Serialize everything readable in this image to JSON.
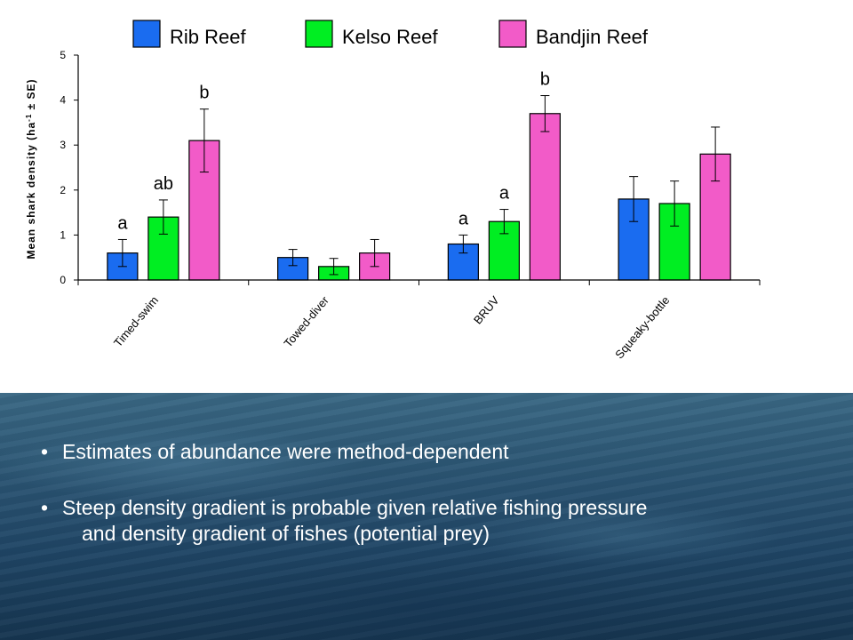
{
  "chart_data": {
    "type": "bar",
    "categories": [
      "Timed-swim",
      "Towed-diver",
      "BRUV",
      "Squeaky-bottle"
    ],
    "series": [
      {
        "name": "Rib Reef",
        "color": "#1a6cf0",
        "values": [
          0.6,
          0.5,
          0.8,
          1.8
        ],
        "errors": [
          0.3,
          0.18,
          0.2,
          0.5
        ],
        "labels": [
          "a",
          "",
          "a",
          ""
        ]
      },
      {
        "name": "Kelso Reef",
        "color": "#00ee22",
        "values": [
          1.4,
          0.3,
          1.3,
          1.7
        ],
        "errors": [
          0.38,
          0.18,
          0.27,
          0.5
        ],
        "labels": [
          "ab",
          "",
          "a",
          ""
        ]
      },
      {
        "name": "Bandjin Reef",
        "color": "#f25bc8",
        "values": [
          3.1,
          0.6,
          3.7,
          2.8
        ],
        "errors": [
          0.7,
          0.3,
          0.4,
          0.6
        ],
        "labels": [
          "b",
          "",
          "b",
          ""
        ]
      }
    ],
    "ylabel_prefix": "Mean shark density (ha",
    "ylabel_sup": "-1",
    "ylabel_suffix": " ± SE)",
    "ylim": [
      0,
      5
    ],
    "yticks": [
      0,
      1,
      2,
      3,
      4,
      5
    ],
    "legend_position": "top",
    "grid": false
  },
  "bullets": {
    "item1": "Estimates of abundance were method-dependent",
    "item2_line1": "Steep density gradient is probable given relative fishing pressure",
    "item2_line2": "and density gradient of fishes (potential prey)",
    "dot": "•"
  }
}
